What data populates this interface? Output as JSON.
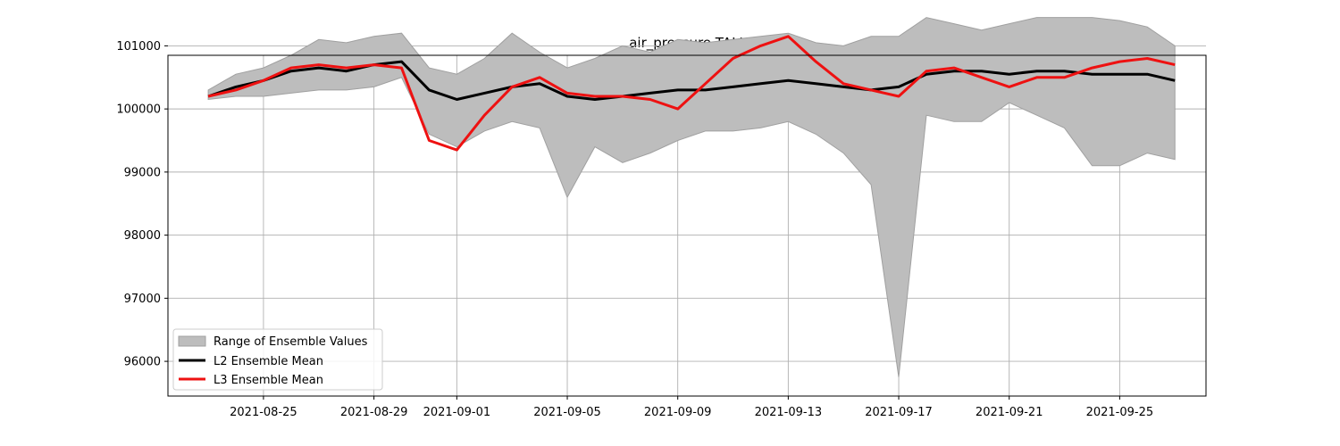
{
  "chart_data": {
    "type": "line",
    "title": "air_pressure TALL",
    "xlabel": "",
    "ylabel": "",
    "x_type": "date",
    "x_ticks": [
      "2021-08-25",
      "2021-08-29",
      "2021-09-01",
      "2021-09-05",
      "2021-09-09",
      "2021-09-13",
      "2021-09-17",
      "2021-09-21",
      "2021-09-25"
    ],
    "y_ticks": [
      96000,
      97000,
      98000,
      99000,
      100000,
      101000
    ],
    "xlim": [
      "2021-08-21T13:00",
      "2021-09-28T03:00"
    ],
    "ylim": [
      95450,
      100850
    ],
    "grid": true,
    "legend_position": "lower-left",
    "band": {
      "name": "Range of Ensemble Values",
      "color": "#bdbdbd",
      "x": [
        "2021-08-23",
        "2021-08-24",
        "2021-08-25",
        "2021-08-26",
        "2021-08-27",
        "2021-08-28",
        "2021-08-29",
        "2021-08-30",
        "2021-08-31",
        "2021-09-01",
        "2021-09-02",
        "2021-09-03",
        "2021-09-04",
        "2021-09-05",
        "2021-09-06",
        "2021-09-07",
        "2021-09-08",
        "2021-09-09",
        "2021-09-10",
        "2021-09-11",
        "2021-09-12",
        "2021-09-13",
        "2021-09-14",
        "2021-09-15",
        "2021-09-16",
        "2021-09-17",
        "2021-09-18",
        "2021-09-19",
        "2021-09-20",
        "2021-09-21",
        "2021-09-22",
        "2021-09-23",
        "2021-09-24",
        "2021-09-25",
        "2021-09-26",
        "2021-09-27"
      ],
      "low": [
        100150,
        100200,
        100200,
        100250,
        100300,
        100300,
        100350,
        100500,
        99600,
        99400,
        99650,
        99800,
        99700,
        98600,
        99400,
        99150,
        99300,
        99500,
        99650,
        99650,
        99700,
        99800,
        99600,
        99300,
        98800,
        95750,
        99900,
        99800,
        99800,
        100100,
        99900,
        99700,
        99100,
        99100,
        99300,
        99200
      ],
      "high": [
        100300,
        100550,
        100650,
        100850,
        101100,
        101050,
        101150,
        101200,
        100650,
        100550,
        100800,
        101200,
        100900,
        100650,
        100800,
        101000,
        100900,
        101100,
        101050,
        101100,
        101150,
        101200,
        101050,
        101000,
        101150,
        101150,
        101450,
        101350,
        101250,
        101350,
        101450,
        101450,
        101450,
        101400,
        101300,
        101000
      ]
    },
    "series": [
      {
        "name": "L2 Ensemble Mean",
        "color": "#000000",
        "x": [
          "2021-08-23",
          "2021-08-24",
          "2021-08-25",
          "2021-08-26",
          "2021-08-27",
          "2021-08-28",
          "2021-08-29",
          "2021-08-30",
          "2021-08-31",
          "2021-09-01",
          "2021-09-02",
          "2021-09-03",
          "2021-09-04",
          "2021-09-05",
          "2021-09-06",
          "2021-09-07",
          "2021-09-08",
          "2021-09-09",
          "2021-09-10",
          "2021-09-11",
          "2021-09-12",
          "2021-09-13",
          "2021-09-14",
          "2021-09-15",
          "2021-09-16",
          "2021-09-17",
          "2021-09-18",
          "2021-09-19",
          "2021-09-20",
          "2021-09-21",
          "2021-09-22",
          "2021-09-23",
          "2021-09-24",
          "2021-09-25",
          "2021-09-26",
          "2021-09-27"
        ],
        "values": [
          100200,
          100350,
          100450,
          100600,
          100650,
          100600,
          100700,
          100750,
          100300,
          100150,
          100250,
          100350,
          100400,
          100200,
          100150,
          100200,
          100250,
          100300,
          100300,
          100350,
          100400,
          100450,
          100400,
          100350,
          100300,
          100350,
          100550,
          100600,
          100600,
          100550,
          100600,
          100600,
          100550,
          100550,
          100550,
          100450
        ]
      },
      {
        "name": "L3 Ensemble Mean",
        "color": "#ee1111",
        "x": [
          "2021-08-23",
          "2021-08-24",
          "2021-08-25",
          "2021-08-26",
          "2021-08-27",
          "2021-08-28",
          "2021-08-29",
          "2021-08-30",
          "2021-08-31",
          "2021-09-01",
          "2021-09-02",
          "2021-09-03",
          "2021-09-04",
          "2021-09-05",
          "2021-09-06",
          "2021-09-07",
          "2021-09-08",
          "2021-09-09",
          "2021-09-10",
          "2021-09-11",
          "2021-09-12",
          "2021-09-13",
          "2021-09-14",
          "2021-09-15",
          "2021-09-16",
          "2021-09-17",
          "2021-09-18",
          "2021-09-19",
          "2021-09-20",
          "2021-09-21",
          "2021-09-22",
          "2021-09-23",
          "2021-09-24",
          "2021-09-25",
          "2021-09-26",
          "2021-09-27"
        ],
        "values": [
          100200,
          100300,
          100450,
          100650,
          100700,
          100650,
          100700,
          100650,
          99500,
          99350,
          99900,
          100350,
          100500,
          100250,
          100200,
          100200,
          100150,
          100000,
          100400,
          100800,
          101000,
          101150,
          100750,
          100400,
          100300,
          100200,
          100600,
          100650,
          100500,
          100350,
          100500,
          100500,
          100650,
          100750,
          100800,
          100700
        ]
      }
    ]
  }
}
